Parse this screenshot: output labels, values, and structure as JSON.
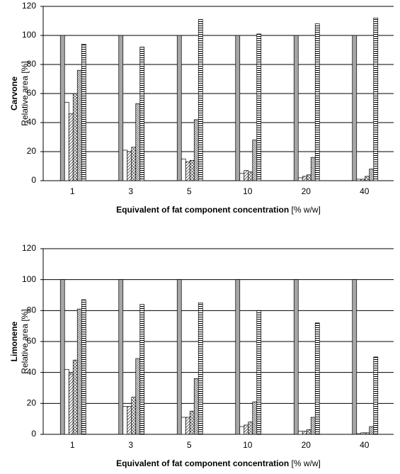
{
  "chart_data": [
    {
      "type": "bar",
      "ylabel_title": "Carvone",
      "ylabel": "Relative area [%]",
      "xlabel": "Equivalent of fat component concentration",
      "xlabel_unit": "[% w/w]",
      "categories": [
        "1",
        "3",
        "5",
        "10",
        "20",
        "40"
      ],
      "series": [
        {
          "color": "#a6a6a6",
          "hatch": "none",
          "values": [
            100,
            100,
            100,
            100,
            100,
            100
          ]
        },
        {
          "color": "#ffffff",
          "hatch": "none",
          "values": [
            54,
            21,
            15,
            5,
            2,
            1
          ]
        },
        {
          "color": "#ffffff",
          "hatch": "diagonal",
          "values": [
            46,
            20,
            13,
            7,
            3,
            1
          ]
        },
        {
          "color": "#ffffff",
          "hatch": "cross",
          "values": [
            60,
            23,
            14,
            6,
            4,
            3
          ]
        },
        {
          "color": "#ffffff",
          "hatch": "dense",
          "values": [
            76,
            53,
            42,
            28,
            16,
            8
          ]
        },
        {
          "color": "#ffffff",
          "hatch": "horizontal",
          "values": [
            94,
            92,
            111,
            101,
            108,
            112
          ]
        }
      ],
      "ylim": [
        0,
        120
      ],
      "yticks": [
        0,
        20,
        40,
        60,
        80,
        100,
        120
      ],
      "grid": true
    },
    {
      "type": "bar",
      "ylabel_title": "Limonene",
      "ylabel": "Relative area [%]",
      "xlabel": "Equivalent of fat component concentration",
      "xlabel_unit": "[% w/w]",
      "categories": [
        "1",
        "3",
        "5",
        "10",
        "20",
        "40"
      ],
      "series": [
        {
          "color": "#a6a6a6",
          "hatch": "none",
          "values": [
            100,
            100,
            100,
            100,
            100,
            100
          ]
        },
        {
          "color": "#ffffff",
          "hatch": "none",
          "values": [
            42,
            18,
            11,
            5,
            2,
            0.5
          ]
        },
        {
          "color": "#ffffff",
          "hatch": "diagonal",
          "values": [
            39,
            18,
            11,
            6,
            2,
            1
          ]
        },
        {
          "color": "#ffffff",
          "hatch": "cross",
          "values": [
            48,
            24,
            15,
            8,
            3,
            1
          ]
        },
        {
          "color": "#ffffff",
          "hatch": "dense",
          "values": [
            81,
            49,
            36,
            21,
            11,
            5
          ]
        },
        {
          "color": "#ffffff",
          "hatch": "horizontal",
          "values": [
            87,
            84,
            85,
            80,
            72,
            50
          ]
        }
      ],
      "ylim": [
        0,
        120
      ],
      "yticks": [
        0,
        20,
        40,
        60,
        80,
        100,
        120
      ],
      "grid": true
    }
  ]
}
